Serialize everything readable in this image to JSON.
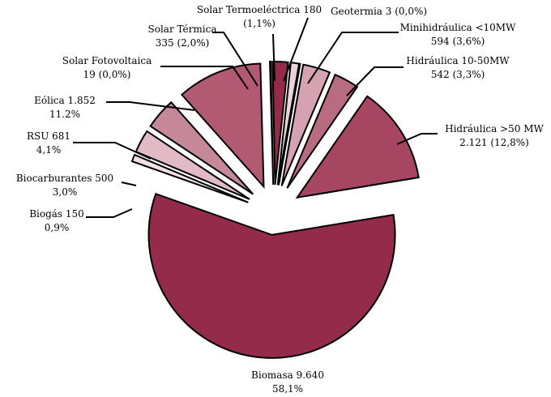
{
  "chart_data": {
    "type": "pie",
    "categories": [
      "Geotermia",
      "Minihidráulica <10MW",
      "Hidráulica 10-50MW",
      "Hidráulica >50 MW",
      "Biomasa",
      "Biogás",
      "Biocarburantes",
      "RSU",
      "Eólica",
      "Solar Fotovoltaica",
      "Solar Térmica",
      "Solar Termoeléctrica"
    ],
    "values": [
      3,
      594,
      542,
      2121,
      9640,
      150,
      500,
      681,
      1852,
      19,
      335,
      180
    ],
    "value_labels": [
      "3",
      "594",
      "542",
      "2.121",
      "9.640",
      "150",
      "500",
      "681",
      "1.852",
      "19",
      "335",
      "180"
    ],
    "percents": [
      0.0,
      3.6,
      3.3,
      12.8,
      58.1,
      0.9,
      3.0,
      4.1,
      11.2,
      0.0,
      2.0,
      1.1
    ],
    "percent_labels": [
      "(0,0%)",
      "(3,6%)",
      "(3,3%)",
      "(12,8%)",
      "58,1%",
      "0,9%",
      "3,0%",
      "4,1%",
      "11.2%",
      "(0,0%)",
      "(2,0%)",
      "(1,1%)"
    ],
    "colors": [
      "#e6c6d0",
      "#d4a2b1",
      "#b96b80",
      "#a64660",
      "#952b4a",
      "#f2e0e5",
      "#e2bac6",
      "#c48898",
      "#b15a72",
      "#e8ccd4",
      "#952b4a",
      "#ecd3da"
    ]
  }
}
